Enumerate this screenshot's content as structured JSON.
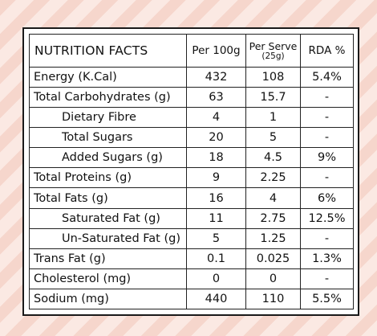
{
  "table": {
    "title": "NUTRITION FACTS",
    "columns": {
      "per100g": "Per 100g",
      "per_serve": "Per Serve",
      "per_serve_sub": "(25g)",
      "rda": "RDA %"
    },
    "rows": [
      {
        "name": "Energy (K.Cal)",
        "per100g": "432",
        "per_serve": "108",
        "rda": "5.4%"
      },
      {
        "name": "Total Carbohydrates (g)",
        "per100g": "63",
        "per_serve": "15.7",
        "rda": "-"
      },
      {
        "name": "Dietary Fibre",
        "per100g": "4",
        "per_serve": "1",
        "rda": "-"
      },
      {
        "name": "Total Sugars",
        "per100g": "20",
        "per_serve": "5",
        "rda": "-"
      },
      {
        "name": "Added Sugars (g)",
        "per100g": "18",
        "per_serve": "4.5",
        "rda": "9%"
      },
      {
        "name": "Total Proteins (g)",
        "per100g": "9",
        "per_serve": "2.25",
        "rda": "-"
      },
      {
        "name": "Total Fats (g)",
        "per100g": "16",
        "per_serve": "4",
        "rda": "6%"
      },
      {
        "name": "Saturated Fat (g)",
        "per100g": "11",
        "per_serve": "2.75",
        "rda": "12.5%"
      },
      {
        "name": "Un-Saturated Fat (g)",
        "per100g": "5",
        "per_serve": "1.25",
        "rda": "-"
      },
      {
        "name": "Trans Fat (g)",
        "per100g": "0.1",
        "per_serve": "0.025",
        "rda": "1.3%"
      },
      {
        "name": "Cholesterol (mg)",
        "per100g": "0",
        "per_serve": "0",
        "rda": "-"
      },
      {
        "name": "Sodium (mg)",
        "per100g": "440",
        "per_serve": "110",
        "rda": "5.5%"
      }
    ]
  }
}
